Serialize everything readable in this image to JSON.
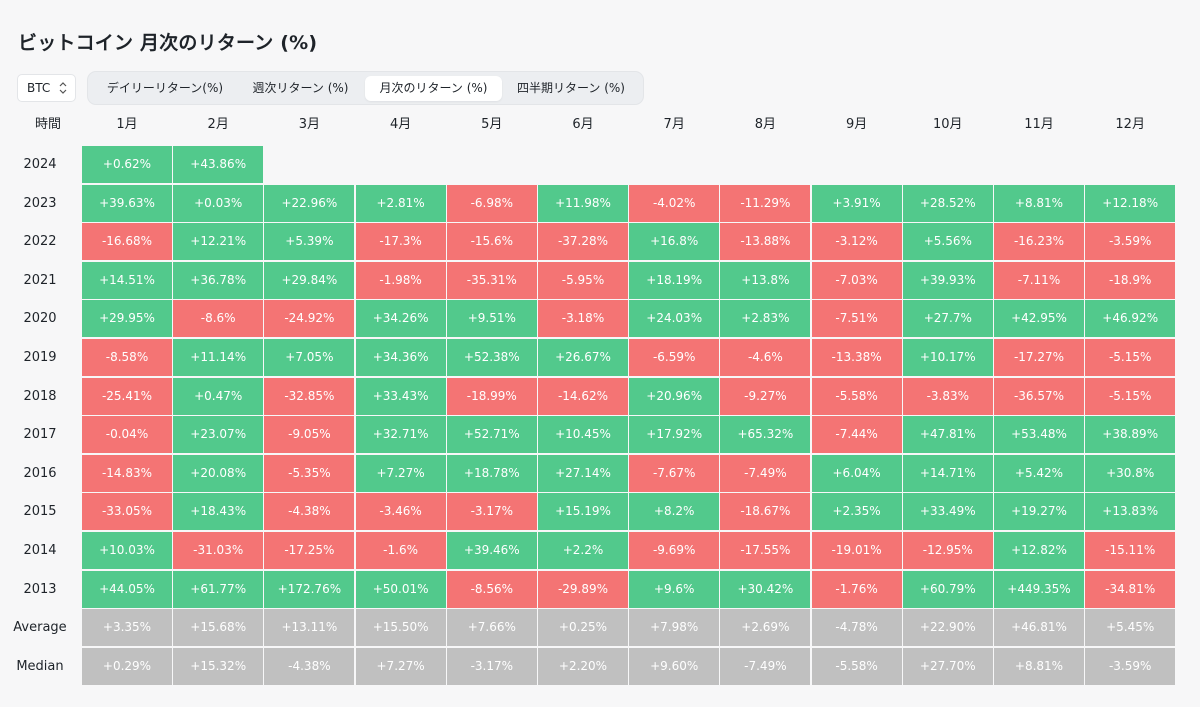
{
  "title": "ビットコイン 月次のリターン (%)",
  "asset_select": {
    "value": "BTC",
    "icon": "chevron-updown-icon"
  },
  "tabs": [
    {
      "label": "デイリーリターン(%)",
      "active": false
    },
    {
      "label": "週次リターン (%)",
      "active": false
    },
    {
      "label": "月次のリターン (%)",
      "active": true
    },
    {
      "label": "四半期リターン (%)",
      "active": false
    }
  ],
  "table": {
    "header_label": "時間",
    "months": [
      "1月",
      "2月",
      "3月",
      "4月",
      "5月",
      "6月",
      "7月",
      "8月",
      "9月",
      "10月",
      "11月",
      "12月"
    ],
    "rows": [
      {
        "label": "2024",
        "values": [
          "+0.62%",
          "+43.86%"
        ]
      },
      {
        "label": "2023",
        "values": [
          "+39.63%",
          "+0.03%",
          "+22.96%",
          "+2.81%",
          "-6.98%",
          "+11.98%",
          "-4.02%",
          "-11.29%",
          "+3.91%",
          "+28.52%",
          "+8.81%",
          "+12.18%"
        ]
      },
      {
        "label": "2022",
        "values": [
          "-16.68%",
          "+12.21%",
          "+5.39%",
          "-17.3%",
          "-15.6%",
          "-37.28%",
          "+16.8%",
          "-13.88%",
          "-3.12%",
          "+5.56%",
          "-16.23%",
          "-3.59%"
        ]
      },
      {
        "label": "2021",
        "values": [
          "+14.51%",
          "+36.78%",
          "+29.84%",
          "-1.98%",
          "-35.31%",
          "-5.95%",
          "+18.19%",
          "+13.8%",
          "-7.03%",
          "+39.93%",
          "-7.11%",
          "-18.9%"
        ]
      },
      {
        "label": "2020",
        "values": [
          "+29.95%",
          "-8.6%",
          "-24.92%",
          "+34.26%",
          "+9.51%",
          "-3.18%",
          "+24.03%",
          "+2.83%",
          "-7.51%",
          "+27.7%",
          "+42.95%",
          "+46.92%"
        ]
      },
      {
        "label": "2019",
        "values": [
          "-8.58%",
          "+11.14%",
          "+7.05%",
          "+34.36%",
          "+52.38%",
          "+26.67%",
          "-6.59%",
          "-4.6%",
          "-13.38%",
          "+10.17%",
          "-17.27%",
          "-5.15%"
        ]
      },
      {
        "label": "2018",
        "values": [
          "-25.41%",
          "+0.47%",
          "-32.85%",
          "+33.43%",
          "-18.99%",
          "-14.62%",
          "+20.96%",
          "-9.27%",
          "-5.58%",
          "-3.83%",
          "-36.57%",
          "-5.15%"
        ]
      },
      {
        "label": "2017",
        "values": [
          "-0.04%",
          "+23.07%",
          "-9.05%",
          "+32.71%",
          "+52.71%",
          "+10.45%",
          "+17.92%",
          "+65.32%",
          "-7.44%",
          "+47.81%",
          "+53.48%",
          "+38.89%"
        ]
      },
      {
        "label": "2016",
        "values": [
          "-14.83%",
          "+20.08%",
          "-5.35%",
          "+7.27%",
          "+18.78%",
          "+27.14%",
          "-7.67%",
          "-7.49%",
          "+6.04%",
          "+14.71%",
          "+5.42%",
          "+30.8%"
        ]
      },
      {
        "label": "2015",
        "values": [
          "-33.05%",
          "+18.43%",
          "-4.38%",
          "-3.46%",
          "-3.17%",
          "+15.19%",
          "+8.2%",
          "-18.67%",
          "+2.35%",
          "+33.49%",
          "+19.27%",
          "+13.83%"
        ]
      },
      {
        "label": "2014",
        "values": [
          "+10.03%",
          "-31.03%",
          "-17.25%",
          "-1.6%",
          "+39.46%",
          "+2.2%",
          "-9.69%",
          "-17.55%",
          "-19.01%",
          "-12.95%",
          "+12.82%",
          "-15.11%"
        ]
      },
      {
        "label": "2013",
        "values": [
          "+44.05%",
          "+61.77%",
          "+172.76%",
          "+50.01%",
          "-8.56%",
          "-29.89%",
          "+9.6%",
          "+30.42%",
          "-1.76%",
          "+60.79%",
          "+449.35%",
          "-34.81%"
        ]
      },
      {
        "label": "Average",
        "stat": true,
        "values": [
          "+3.35%",
          "+15.68%",
          "+13.11%",
          "+15.50%",
          "+7.66%",
          "+0.25%",
          "+7.98%",
          "+2.69%",
          "-4.78%",
          "+22.90%",
          "+46.81%",
          "+5.45%"
        ]
      },
      {
        "label": "Median",
        "stat": true,
        "values": [
          "+0.29%",
          "+15.32%",
          "-4.38%",
          "+7.27%",
          "-3.17%",
          "+2.20%",
          "+9.60%",
          "-7.49%",
          "-5.58%",
          "+27.70%",
          "+8.81%",
          "-3.59%"
        ]
      }
    ]
  },
  "colors": {
    "positive": "#52c98c",
    "negative": "#f47474",
    "stat": "#c0c0c0"
  }
}
